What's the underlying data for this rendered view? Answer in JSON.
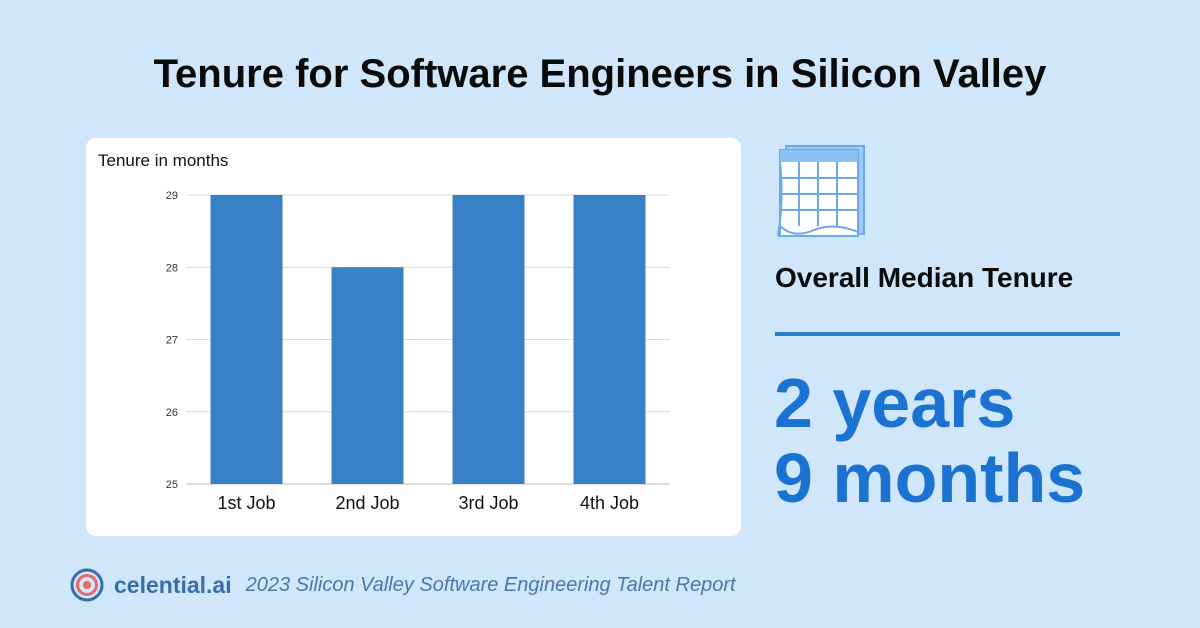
{
  "header": {
    "title": "Tenure for Software Engineers in Silicon Valley"
  },
  "chart_data": {
    "type": "bar",
    "ylabel": "Tenure in months",
    "categories": [
      "1st Job",
      "2nd Job",
      "3rd Job",
      "4th Job"
    ],
    "values": [
      29,
      28,
      29,
      29
    ],
    "ylim": [
      25,
      29
    ],
    "yticks": [
      25,
      26,
      27,
      28,
      29
    ],
    "grid": true,
    "bar_color": "#3a80c6"
  },
  "summary": {
    "icon": "calendar-icon",
    "label": "Overall Median Tenure",
    "value_line1": "2 years",
    "value_line2": "9 months",
    "accent_color": "#1c72d1"
  },
  "footer": {
    "logo_icon": "target-logo-icon",
    "brand": "celential.ai",
    "report": "2023 Silicon Valley Software Engineering Talent Report"
  }
}
